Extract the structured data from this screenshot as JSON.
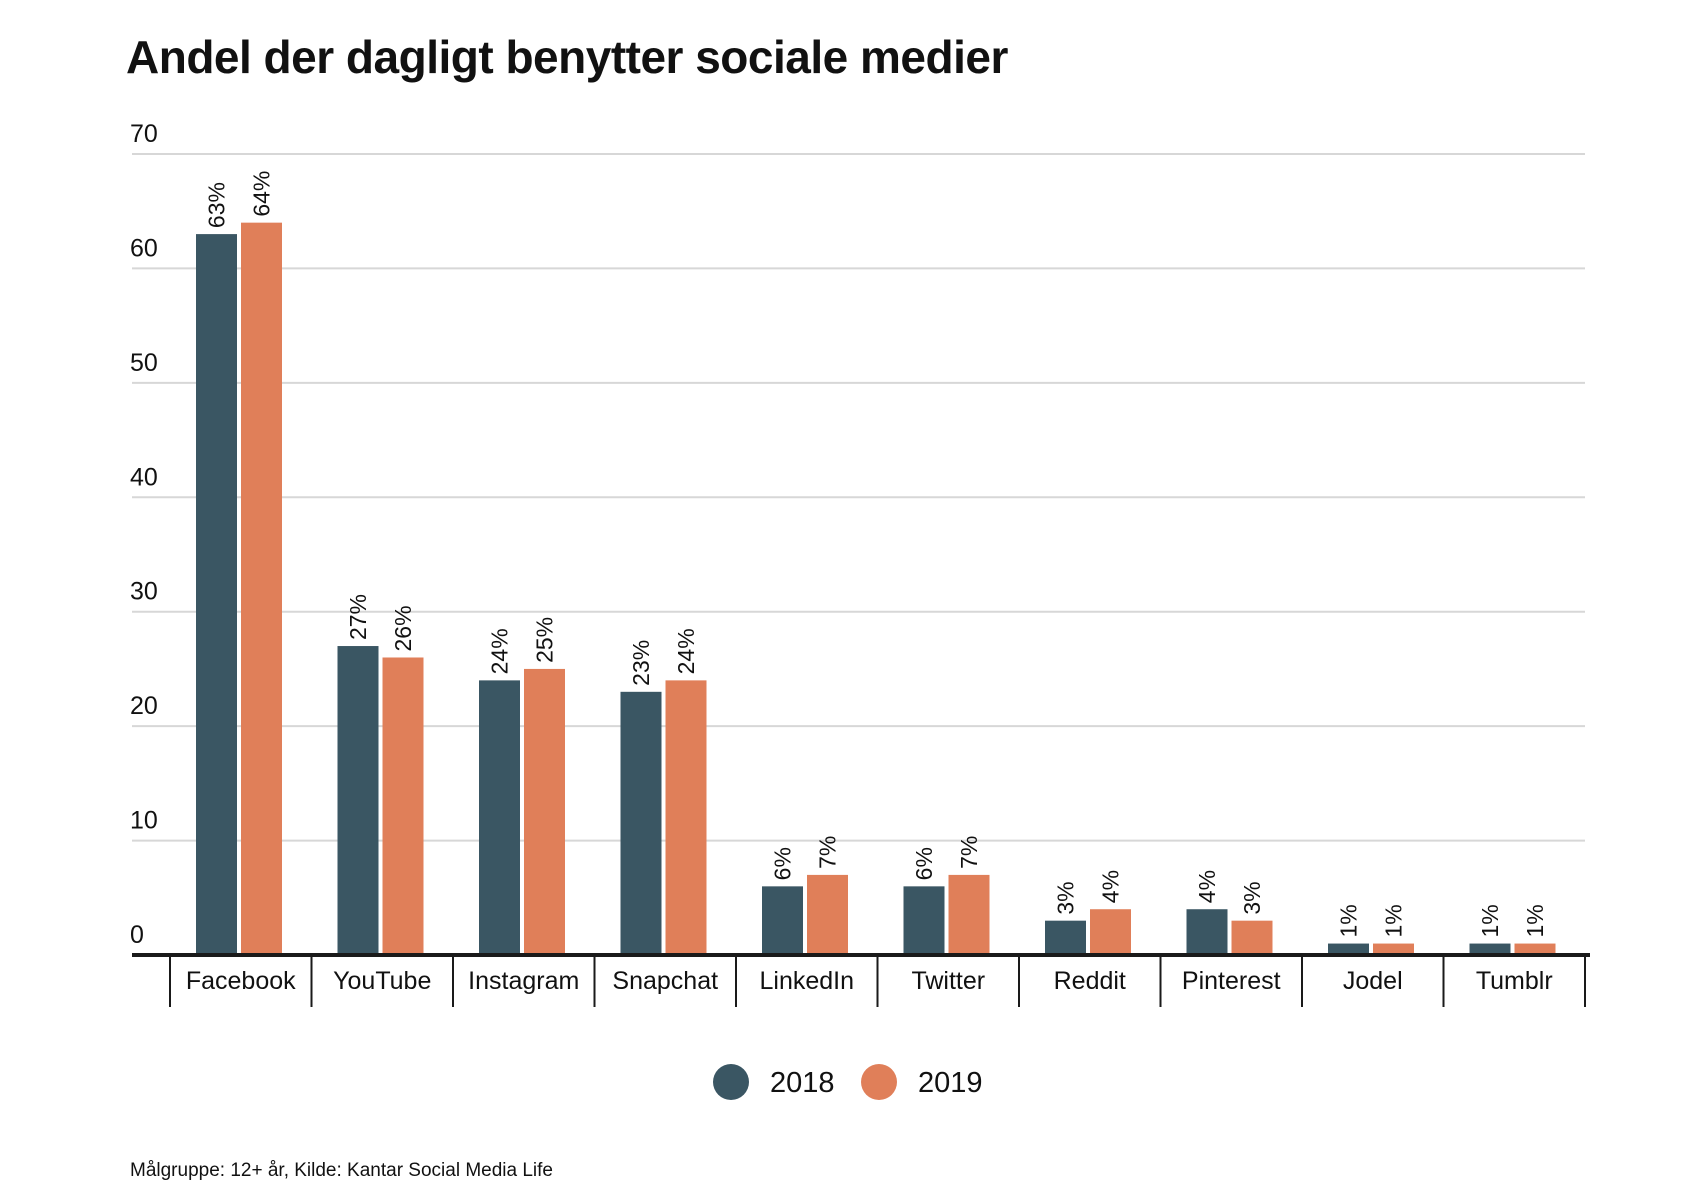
{
  "chart_data": {
    "type": "bar",
    "title": "Andel der dagligt benytter sociale medier",
    "xlabel": "",
    "ylabel": "",
    "ylim": [
      0,
      70
    ],
    "yticks": [
      0,
      10,
      20,
      30,
      40,
      50,
      60,
      70
    ],
    "grid": true,
    "legend_position": "bottom-center",
    "categories": [
      "Facebook",
      "YouTube",
      "Instagram",
      "Snapchat",
      "LinkedIn",
      "Twitter",
      "Reddit",
      "Pinterest",
      "Jodel",
      "Tumblr"
    ],
    "series": [
      {
        "name": "2018",
        "color": "#3a5663",
        "values": [
          63,
          27,
          24,
          23,
          6,
          6,
          3,
          4,
          1,
          1
        ],
        "labels": [
          "63%",
          "27%",
          "24%",
          "23%",
          "6%",
          "6%",
          "3%",
          "4%",
          "1%",
          "1%"
        ]
      },
      {
        "name": "2019",
        "color": "#e07f59",
        "values": [
          64,
          26,
          25,
          24,
          7,
          7,
          4,
          3,
          1,
          1
        ],
        "labels": [
          "64%",
          "26%",
          "25%",
          "24%",
          "7%",
          "7%",
          "4%",
          "3%",
          "1%",
          "1%"
        ]
      }
    ]
  },
  "footnote": "Målgruppe: 12+ år, Kilde: Kantar Social Media Life",
  "colors": {
    "grid": "#d7d7d7",
    "axis": "#1a1a1a",
    "text": "#111111"
  }
}
